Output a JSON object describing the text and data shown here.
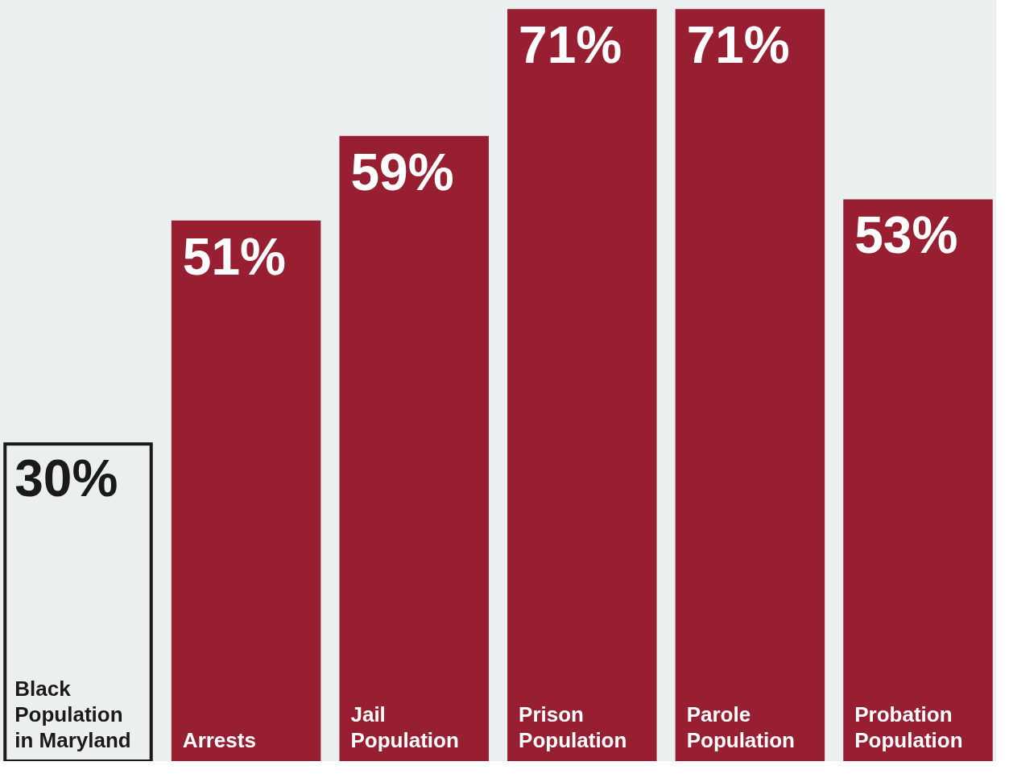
{
  "chart_data": {
    "type": "bar",
    "categories": [
      "Black Population in Maryland",
      "Arrests",
      "Jail Population",
      "Prison Population",
      "Parole Population",
      "Probation Population"
    ],
    "values": [
      30,
      51,
      59,
      71,
      71,
      53
    ],
    "colors": [
      "#eceff0",
      "#981f32",
      "#981f32",
      "#981f32",
      "#981f32",
      "#981f32"
    ],
    "value_labels": [
      "30%",
      "51%",
      "59%",
      "71%",
      "71%",
      "53%"
    ],
    "ylim": [
      0,
      72
    ],
    "grid": false
  }
}
